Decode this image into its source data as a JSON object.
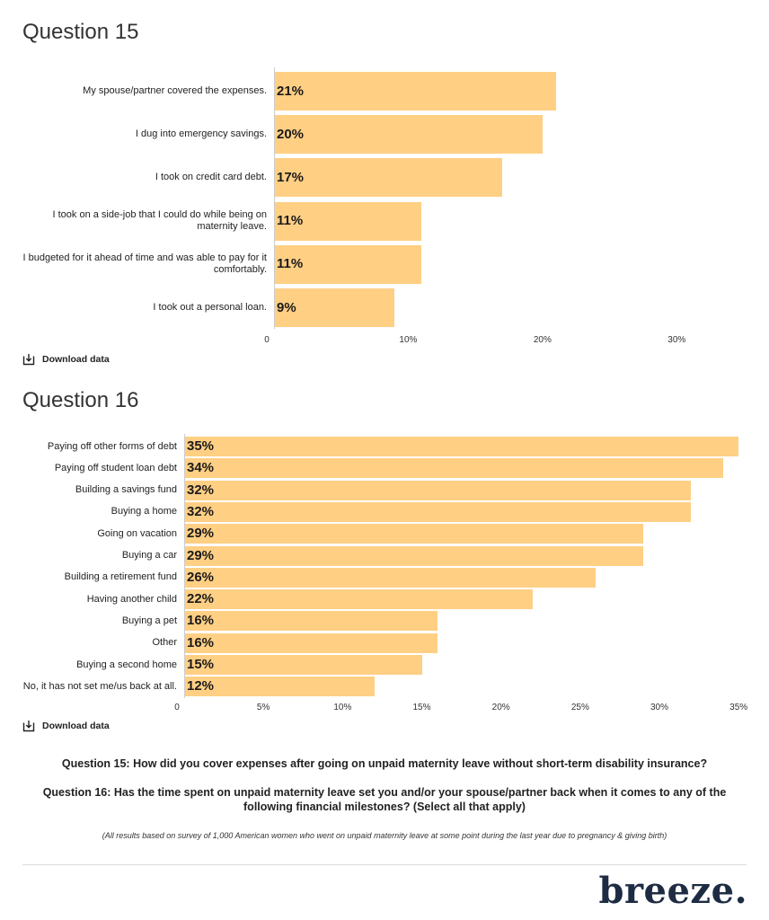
{
  "q15": {
    "title": "Question 15",
    "download_label": "Download data",
    "chart_data": {
      "type": "bar",
      "orientation": "horizontal",
      "categories": [
        "My spouse/partner covered the expenses.",
        "I dug into emergency savings.",
        "I took on credit card debt.",
        "I took on a side-job that I could do while being on maternity leave.",
        "I budgeted for it ahead of time and was able to pay for it comfortably.",
        "I took out a personal loan."
      ],
      "values": [
        21,
        20,
        17,
        11,
        11,
        9
      ],
      "data_labels": [
        "21%",
        "20%",
        "17%",
        "11%",
        "11%",
        "9%"
      ],
      "xticks": [
        0,
        10,
        20,
        30
      ],
      "xtick_labels": [
        "0",
        "10%",
        "20%",
        "30%"
      ],
      "xlim": [
        0,
        35
      ],
      "bar_color": "#ffcf84"
    }
  },
  "q16": {
    "title": "Question 16",
    "download_label": "Download data",
    "chart_data": {
      "type": "bar",
      "orientation": "horizontal",
      "categories": [
        "Paying off other forms of debt",
        "Paying off student loan debt",
        "Building a savings fund",
        "Buying a home",
        "Going on vacation",
        "Buying a car",
        "Building a retirement fund",
        "Having another child",
        "Buying a pet",
        "Other",
        "Buying a second home",
        "No, it has not set me/us back at all."
      ],
      "values": [
        35,
        34,
        32,
        32,
        29,
        29,
        26,
        22,
        16,
        16,
        15,
        12
      ],
      "data_labels": [
        "35%",
        "34%",
        "32%",
        "32%",
        "29%",
        "29%",
        "26%",
        "22%",
        "16%",
        "16%",
        "15%",
        "12%"
      ],
      "xticks": [
        0,
        5,
        10,
        15,
        20,
        25,
        30,
        35
      ],
      "xtick_labels": [
        "0",
        "5%",
        "10%",
        "15%",
        "20%",
        "25%",
        "30%",
        "35%"
      ],
      "xlim": [
        0,
        35.5
      ],
      "bar_color": "#ffcf84"
    }
  },
  "captions": {
    "q15": "Question 15: How did you cover expenses after going on unpaid maternity leave without short-term disability insurance?",
    "q16": "Question 16: Has the time spent on unpaid maternity leave set you and/or your spouse/partner back when it comes to any of the following financial milestones? (Select all that apply)",
    "note": "(All results based on survey of 1,000 American women who went on unpaid maternity leave at some point during the last year due to pregnancy & giving birth)"
  },
  "brand": "breeze."
}
